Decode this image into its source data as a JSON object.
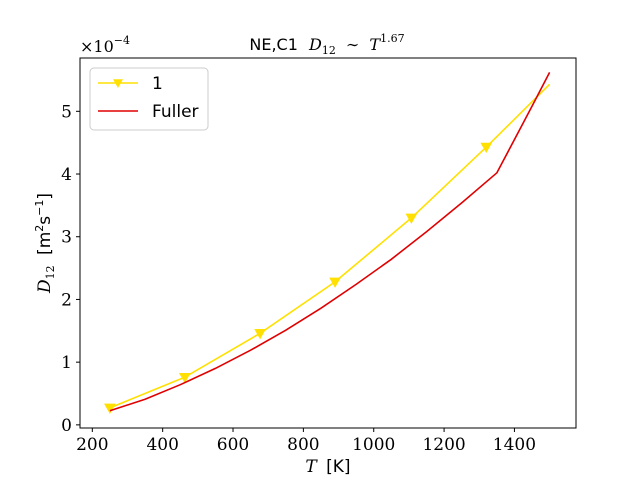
{
  "chart_data": {
    "type": "line",
    "title_prefix": "NE,C1",
    "title_math_base": "D",
    "title_math_sub": "12",
    "title_math_rel": "∼",
    "title_math_var": "T",
    "title_math_exp": "1.67",
    "xlabel_var": "T",
    "xlabel_unit": "[K]",
    "ylabel_var": "D",
    "ylabel_sub": "12",
    "ylabel_unit_open": "[m",
    "ylabel_unit_exp1": "2",
    "ylabel_unit_mid": "s",
    "ylabel_unit_exp2": "−1",
    "ylabel_unit_close": "]",
    "y_multiplier_base": "×10",
    "y_multiplier_exp": "−4",
    "xlim": [
      165,
      1575
    ],
    "ylim": [
      -0.05,
      5.85
    ],
    "x_ticks": [
      200,
      400,
      600,
      800,
      1000,
      1200,
      1400
    ],
    "x_tick_labels": [
      "200",
      "400",
      "600",
      "800",
      "1000",
      "1200",
      "1400"
    ],
    "y_ticks": [
      0,
      1,
      2,
      3,
      4,
      5
    ],
    "y_tick_labels": [
      "0",
      "1",
      "2",
      "3",
      "4",
      "5"
    ],
    "grid": false,
    "legend_position": "top-left",
    "series": [
      {
        "name": "1",
        "color": "#ffe000",
        "marker": "triangle-down",
        "x": [
          250,
          463,
          677,
          890,
          1107,
          1320,
          1500
        ],
        "y": [
          0.27,
          0.76,
          1.46,
          2.28,
          3.3,
          4.43,
          5.43
        ],
        "marker_x": [
          250,
          463,
          677,
          890,
          1107,
          1320
        ]
      },
      {
        "name": "Fuller",
        "color": "#e00000",
        "marker": "none",
        "x": [
          250,
          350,
          450,
          550,
          650,
          750,
          850,
          950,
          1050,
          1150,
          1250,
          1350,
          1450,
          1500
        ],
        "y": [
          0.225,
          0.41,
          0.64,
          0.9,
          1.19,
          1.51,
          1.86,
          2.24,
          2.64,
          3.08,
          3.54,
          4.02,
          5.08,
          5.62
        ]
      }
    ]
  }
}
